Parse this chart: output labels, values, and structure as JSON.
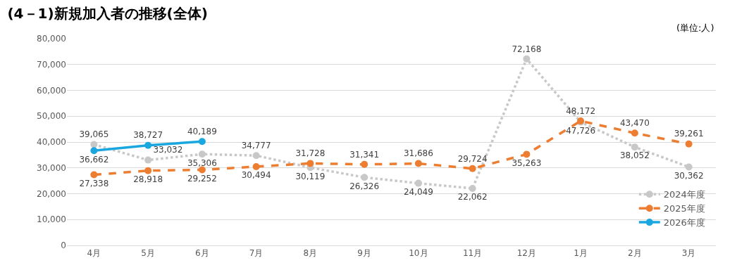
{
  "chart_data": {
    "type": "line",
    "title": "(4－1)新規加入者の推移(全体)",
    "annotations": [
      "(単位:人)"
    ],
    "categories": [
      "4月",
      "5月",
      "6月",
      "7月",
      "8月",
      "9月",
      "10月",
      "11月",
      "12月",
      "1月",
      "2月",
      "3月"
    ],
    "series": [
      {
        "name": "2024年度",
        "color": "#c8c8c8",
        "line_style": "dotted",
        "values": [
          39065,
          33032,
          35306,
          34777,
          30119,
          26326,
          24049,
          22062,
          72168,
          47726,
          38052,
          30362
        ],
        "value_labels": [
          "39,065",
          "33,032",
          "35,306",
          "34,777",
          "30,119",
          "26,326",
          "24,049",
          "22,062",
          "72,168",
          "47,726",
          "38,052",
          "30,362"
        ]
      },
      {
        "name": "2025年度",
        "color": "#ed7d31",
        "line_style": "dashed",
        "values": [
          27338,
          28918,
          29252,
          30494,
          31728,
          31341,
          31686,
          29724,
          35263,
          48172,
          43470,
          39261
        ],
        "value_labels": [
          "27,338",
          "28,918",
          "29,252",
          "30,494",
          "31,728",
          "31,341",
          "31,686",
          "29,724",
          "35,263",
          "48,172",
          "43,470",
          "39,261"
        ]
      },
      {
        "name": "2026年度",
        "color": "#1aa7e0",
        "line_style": "solid",
        "values": [
          36662,
          38727,
          40189,
          null,
          null,
          null,
          null,
          null,
          null,
          null,
          null,
          null
        ],
        "value_labels": [
          "36,662",
          "38,727",
          "40,189",
          null,
          null,
          null,
          null,
          null,
          null,
          null,
          null,
          null
        ]
      }
    ],
    "ylim": [
      0,
      80000
    ],
    "yticks": [
      {
        "value": 0,
        "label": "0"
      },
      {
        "value": 10000,
        "label": "10,000"
      },
      {
        "value": 20000,
        "label": "20,000"
      },
      {
        "value": 30000,
        "label": "30,000"
      },
      {
        "value": 40000,
        "label": "40,000"
      },
      {
        "value": 50000,
        "label": "50,000"
      },
      {
        "value": 60000,
        "label": "60,000"
      },
      {
        "value": 70000,
        "label": "70,000"
      },
      {
        "value": 80000,
        "label": "80,000"
      }
    ],
    "grid": "y",
    "legend": "bottom right",
    "marker": "circle",
    "data_labels": true
  }
}
